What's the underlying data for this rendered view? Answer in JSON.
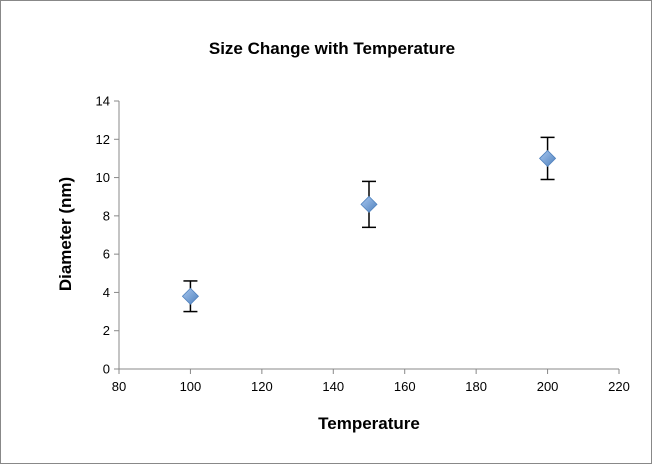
{
  "chart_data": {
    "type": "scatter",
    "title": "Size Change with Temperature",
    "xlabel": "Temperature",
    "ylabel": "Diameter (nm)",
    "xlim": [
      80,
      220
    ],
    "ylim": [
      0,
      14
    ],
    "x_ticks": [
      80,
      100,
      120,
      140,
      160,
      180,
      200,
      220
    ],
    "y_ticks": [
      0,
      2,
      4,
      6,
      8,
      10,
      12,
      14
    ],
    "grid": false,
    "legend": "none",
    "marker": "diamond",
    "colors": {
      "marker_fill": "#6fa0dc",
      "marker_stroke": "#4f81bd",
      "error_bar": "#000000",
      "axis": "#888888"
    },
    "series": [
      {
        "x": [
          100,
          150,
          200
        ],
        "y": [
          3.8,
          8.6,
          11.0
        ],
        "error_low": [
          0.8,
          1.2,
          1.1
        ],
        "error_high": [
          0.8,
          1.2,
          1.1
        ]
      }
    ]
  }
}
